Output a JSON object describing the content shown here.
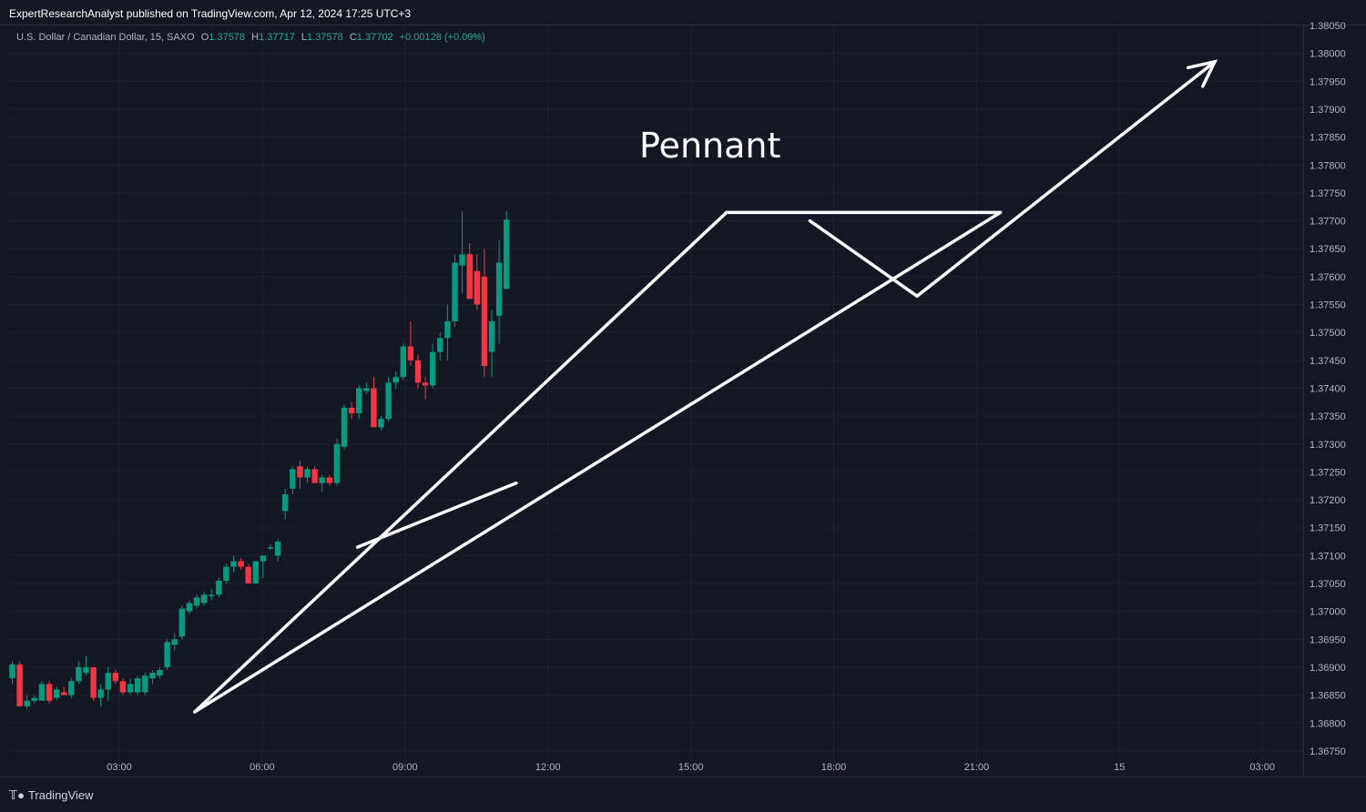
{
  "header": {
    "publisher": "ExpertResearchAnalyst published on TradingView.com, Apr 12, 2024 17:25 UTC+3"
  },
  "legend": {
    "symbol": "U.S. Dollar / Canadian Dollar, 15, SAXO",
    "open_label": "O",
    "open": "1.37578",
    "high_label": "H",
    "high": "1.37717",
    "low_label": "L",
    "low": "1.37578",
    "close_label": "C",
    "close": "1.37702",
    "change": "+0.00128 (+0.09%)"
  },
  "footer": {
    "logo_text": "TradingView",
    "logo_icon": "tradingview-logo-icon"
  },
  "colors": {
    "background": "#131722",
    "grid": "#1e222d",
    "up": "#089981",
    "down": "#f23645",
    "drawing": "#ffffff",
    "axis_text": "#b2b5be"
  },
  "chart_data": {
    "type": "candlestick",
    "annotation": "Pennant",
    "ylim": [
      1.3673,
      1.3806
    ],
    "y_ticks": [
      "1.38050",
      "1.38000",
      "1.37950",
      "1.37900",
      "1.37850",
      "1.37800",
      "1.37750",
      "1.37700",
      "1.37650",
      "1.37600",
      "1.37550",
      "1.37500",
      "1.37450",
      "1.37400",
      "1.37350",
      "1.37300",
      "1.37250",
      "1.37200",
      "1.37150",
      "1.37100",
      "1.37050",
      "1.37000",
      "1.36950",
      "1.36900",
      "1.36850",
      "1.36800",
      "1.36750"
    ],
    "x_ticks": [
      "03:00",
      "06:00",
      "09:00",
      "12:00",
      "15:00",
      "18:00",
      "21:00",
      "15",
      "03:00"
    ],
    "candles": [
      [
        1.3688,
        1.3691,
        1.3687,
        1.36905
      ],
      [
        1.36905,
        1.3691,
        1.3683,
        1.3683
      ],
      [
        1.3683,
        1.3685,
        1.36825,
        1.3684
      ],
      [
        1.3684,
        1.3685,
        1.36835,
        1.36845
      ],
      [
        1.3684,
        1.36875,
        1.3684,
        1.3687
      ],
      [
        1.3687,
        1.36875,
        1.36835,
        1.3684
      ],
      [
        1.36845,
        1.36865,
        1.3684,
        1.3686
      ],
      [
        1.36855,
        1.36865,
        1.3685,
        1.3685
      ],
      [
        1.3685,
        1.3688,
        1.36845,
        1.36875
      ],
      [
        1.36875,
        1.3691,
        1.3687,
        1.369
      ],
      [
        1.3689,
        1.3692,
        1.36885,
        1.369
      ],
      [
        1.369,
        1.369,
        1.3684,
        1.36845
      ],
      [
        1.36845,
        1.3687,
        1.3683,
        1.3686
      ],
      [
        1.3686,
        1.369,
        1.3684,
        1.3689
      ],
      [
        1.3689,
        1.36895,
        1.3687,
        1.36875
      ],
      [
        1.36875,
        1.3688,
        1.3685,
        1.36855
      ],
      [
        1.36855,
        1.3688,
        1.3685,
        1.3687
      ],
      [
        1.36855,
        1.36885,
        1.3685,
        1.3688
      ],
      [
        1.36855,
        1.3689,
        1.3685,
        1.36885
      ],
      [
        1.3688,
        1.36895,
        1.3687,
        1.3689
      ],
      [
        1.36885,
        1.369,
        1.3688,
        1.36895
      ],
      [
        1.369,
        1.3695,
        1.36895,
        1.36945
      ],
      [
        1.3694,
        1.3696,
        1.3693,
        1.3695
      ],
      [
        1.36955,
        1.3701,
        1.3695,
        1.37005
      ],
      [
        1.37,
        1.3702,
        1.36995,
        1.37015
      ],
      [
        1.3701,
        1.3703,
        1.37005,
        1.37025
      ],
      [
        1.37015,
        1.37035,
        1.3701,
        1.3703
      ],
      [
        1.3703,
        1.3704,
        1.3702,
        1.3703
      ],
      [
        1.3703,
        1.3706,
        1.37025,
        1.37055
      ],
      [
        1.37055,
        1.37085,
        1.3705,
        1.3708
      ],
      [
        1.3708,
        1.371,
        1.3707,
        1.3709
      ],
      [
        1.3709,
        1.37095,
        1.37075,
        1.3708
      ],
      [
        1.3708,
        1.37085,
        1.3705,
        1.3705
      ],
      [
        1.3705,
        1.3709,
        1.3705,
        1.3709
      ],
      [
        1.3709,
        1.371,
        1.3706,
        1.371
      ],
      [
        1.37115,
        1.3712,
        1.3711,
        1.37115
      ],
      [
        1.371,
        1.3713,
        1.3709,
        1.37125
      ],
      [
        1.3718,
        1.3722,
        1.37165,
        1.3721
      ],
      [
        1.3722,
        1.3726,
        1.3721,
        1.37255
      ],
      [
        1.3726,
        1.3727,
        1.3722,
        1.3724
      ],
      [
        1.3724,
        1.3726,
        1.3723,
        1.37255
      ],
      [
        1.37255,
        1.3726,
        1.3723,
        1.3723
      ],
      [
        1.3723,
        1.37245,
        1.37215,
        1.3724
      ],
      [
        1.3724,
        1.37245,
        1.37225,
        1.3723
      ],
      [
        1.3723,
        1.3731,
        1.37225,
        1.373
      ],
      [
        1.37295,
        1.3737,
        1.3729,
        1.37365
      ],
      [
        1.37365,
        1.37375,
        1.37345,
        1.37355
      ],
      [
        1.37355,
        1.37405,
        1.37345,
        1.374
      ],
      [
        1.37395,
        1.3741,
        1.3739,
        1.374
      ],
      [
        1.374,
        1.3742,
        1.3733,
        1.3733
      ],
      [
        1.3733,
        1.3735,
        1.37325,
        1.37345
      ],
      [
        1.37345,
        1.3742,
        1.3734,
        1.3741
      ],
      [
        1.3741,
        1.3743,
        1.374,
        1.3742
      ],
      [
        1.3742,
        1.3748,
        1.37415,
        1.37475
      ],
      [
        1.37475,
        1.3752,
        1.3744,
        1.3745
      ],
      [
        1.3745,
        1.3746,
        1.374,
        1.3741
      ],
      [
        1.3741,
        1.3742,
        1.3738,
        1.37405
      ],
      [
        1.37405,
        1.3748,
        1.374,
        1.37465
      ],
      [
        1.37465,
        1.375,
        1.3745,
        1.3749
      ],
      [
        1.3749,
        1.3755,
        1.3745,
        1.3752
      ],
      [
        1.3752,
        1.3764,
        1.3751,
        1.37625
      ],
      [
        1.3762,
        1.37717,
        1.3757,
        1.3764
      ],
      [
        1.3764,
        1.3766,
        1.3756,
        1.3756
      ],
      [
        1.3761,
        1.3764,
        1.3754,
        1.3755
      ],
      [
        1.376,
        1.3765,
        1.3742,
        1.3744
      ],
      [
        1.37465,
        1.3754,
        1.3742,
        1.3752
      ],
      [
        1.3753,
        1.37665,
        1.3748,
        1.37625
      ],
      [
        1.37578,
        1.37717,
        1.37578,
        1.37702
      ]
    ],
    "drawings": [
      {
        "type": "line",
        "name": "lower-trendline",
        "points": [
          [
            "04:35",
            1.3682
          ],
          [
            "21:30",
            1.37715
          ]
        ]
      },
      {
        "type": "line",
        "name": "upper-trendline",
        "points": [
          [
            "04:35",
            1.3682
          ],
          [
            "15:45",
            1.37715
          ]
        ]
      },
      {
        "type": "line",
        "name": "pennant-inner-line",
        "points": [
          [
            "08:00",
            1.37115
          ],
          [
            "11:20",
            1.3723
          ]
        ]
      },
      {
        "type": "line",
        "name": "resistance-line",
        "points": [
          [
            "15:45",
            1.37715
          ],
          [
            "21:30",
            1.37715
          ]
        ]
      },
      {
        "type": "arrow",
        "name": "projection-arrow",
        "points": [
          [
            "17:30",
            1.377
          ],
          [
            "19:45",
            1.37565
          ],
          [
            "02:00",
            1.37985
          ]
        ]
      }
    ]
  }
}
